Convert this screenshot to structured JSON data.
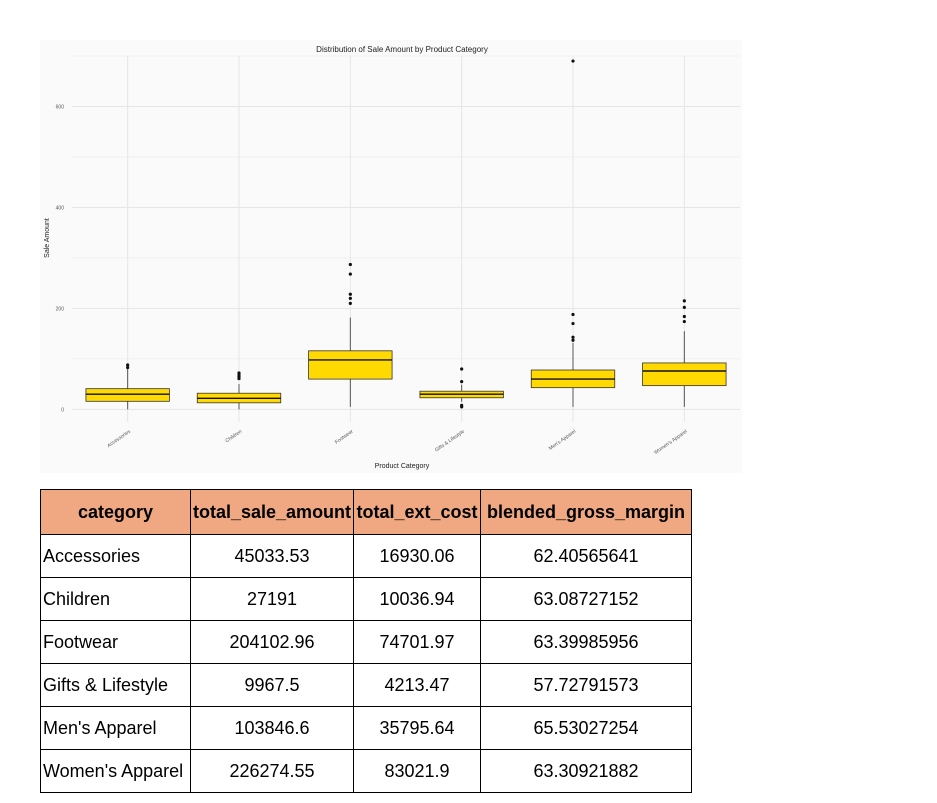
{
  "chart_data": {
    "type": "box",
    "title": "Distribution of Sale Amount by Product Category",
    "xlabel": "Product Category",
    "ylabel": "Sale Amount",
    "ylim": [
      -25,
      700
    ],
    "yticks": [
      0,
      200,
      400,
      600
    ],
    "grid": true,
    "legend": "none",
    "box_color": "#ffd900",
    "categories": [
      "Accessories",
      "Children",
      "Footwear",
      "Gifts & Lifestyle",
      "Men's Apparel",
      "Women's Apparel"
    ],
    "boxes": [
      {
        "category": "Accessories",
        "whisker_low": 0,
        "q1": 16,
        "median": 30,
        "q3": 41,
        "whisker_high": 82,
        "outliers": [
          88,
          83
        ]
      },
      {
        "category": "Children",
        "whisker_low": 0,
        "q1": 13,
        "median": 22,
        "q3": 32,
        "whisker_high": 50,
        "outliers": [
          61,
          65,
          68,
          72
        ]
      },
      {
        "category": "Footwear",
        "whisker_low": 5,
        "q1": 60,
        "median": 98,
        "q3": 116,
        "whisker_high": 182,
        "outliers": [
          210,
          220,
          228,
          268,
          287
        ]
      },
      {
        "category": "Gifts & Lifestyle",
        "whisker_low": 15,
        "q1": 23,
        "median": 30,
        "q3": 36,
        "whisker_high": 49,
        "outliers": [
          5,
          8,
          55,
          80
        ]
      },
      {
        "category": "Men's Apparel",
        "whisker_low": 5,
        "q1": 43,
        "median": 60,
        "q3": 78,
        "whisker_high": 132,
        "outliers": [
          137,
          143,
          170,
          188,
          690
        ]
      },
      {
        "category": "Women's Apparel",
        "whisker_low": 5,
        "q1": 47,
        "median": 76,
        "q3": 92,
        "whisker_high": 155,
        "outliers": [
          174,
          184,
          202,
          215
        ]
      }
    ]
  },
  "table": {
    "headers": [
      "category",
      "total_sale_amount",
      "total_ext_cost",
      "blended_gross_margin"
    ],
    "rows": [
      [
        "Accessories",
        "45033.53",
        "16930.06",
        "62.40565641"
      ],
      [
        "Children",
        "27191",
        "10036.94",
        "63.08727152"
      ],
      [
        "Footwear",
        "204102.96",
        "74701.97",
        "63.39985956"
      ],
      [
        "Gifts & Lifestyle",
        "9967.5",
        "4213.47",
        "57.72791573"
      ],
      [
        "Men's Apparel",
        "103846.6",
        "35795.64",
        "65.53027254"
      ],
      [
        "Women's Apparel",
        "226274.55",
        "83021.9",
        "63.30921882"
      ]
    ]
  },
  "colors": {
    "header_fill": "#f0a882",
    "chart_background": "#fafafa",
    "grid": "#e6e6e6"
  }
}
